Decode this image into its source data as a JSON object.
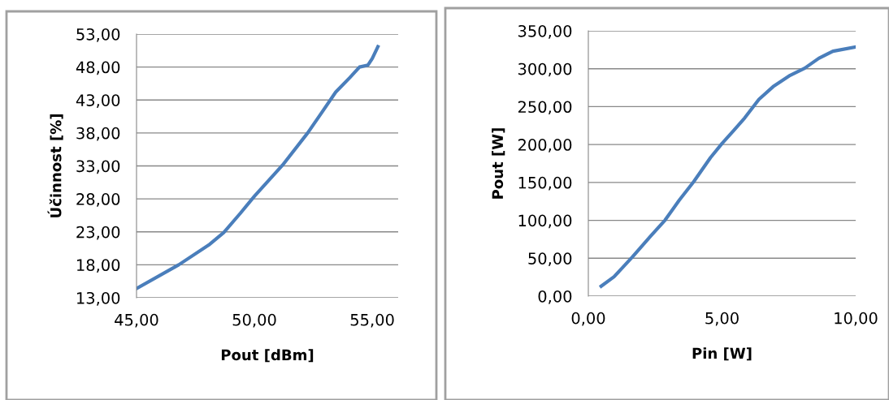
{
  "chart_data": [
    {
      "type": "line",
      "xlabel": "Pout [dBm]",
      "ylabel": "Účinnost [%]",
      "xlim": [
        45,
        56.1
      ],
      "ylim": [
        13,
        53
      ],
      "xticks": [
        {
          "value": 45,
          "label": "45,00"
        },
        {
          "value": 50,
          "label": "50,00"
        },
        {
          "value": 55,
          "label": "55,00"
        }
      ],
      "yticks": [
        {
          "value": 13,
          "label": "13,00"
        },
        {
          "value": 18,
          "label": "18,00"
        },
        {
          "value": 23,
          "label": "23,00"
        },
        {
          "value": 28,
          "label": "28,00"
        },
        {
          "value": 33,
          "label": "33,00"
        },
        {
          "value": 38,
          "label": "38,00"
        },
        {
          "value": 43,
          "label": "43,00"
        },
        {
          "value": 48,
          "label": "48,00"
        },
        {
          "value": 53,
          "label": "53,00"
        }
      ],
      "grid": "y",
      "marker": "none",
      "line_style": "solid",
      "series": [
        {
          "color": "#4a7ebb",
          "x": [
            45,
            46.79,
            48.1,
            48.7,
            49.4,
            50.0,
            51.19,
            52.26,
            52.86,
            53.45,
            54.05,
            54.46,
            54.82,
            55.0,
            55.24
          ],
          "values": [
            14.4,
            18.0,
            21.1,
            22.9,
            25.8,
            28.4,
            33.1,
            38.0,
            41.1,
            44.2,
            46.4,
            48.0,
            48.3,
            49.3,
            51.1
          ]
        }
      ]
    },
    {
      "type": "line",
      "xlabel": "Pin [W]",
      "ylabel": "Pout [W]",
      "xlim": [
        0,
        10
      ],
      "ylim": [
        0,
        350
      ],
      "xticks": [
        {
          "value": 0,
          "label": "0,00"
        },
        {
          "value": 5,
          "label": "5,00"
        },
        {
          "value": 10,
          "label": "10,00"
        }
      ],
      "yticks": [
        {
          "value": 0,
          "label": "0,00"
        },
        {
          "value": 50,
          "label": "50,00"
        },
        {
          "value": 100,
          "label": "100,00"
        },
        {
          "value": 150,
          "label": "150,00"
        },
        {
          "value": 200,
          "label": "200,00"
        },
        {
          "value": 250,
          "label": "250,00"
        },
        {
          "value": 300,
          "label": "300,00"
        },
        {
          "value": 350,
          "label": "350,00"
        }
      ],
      "grid": "y",
      "marker": "none",
      "line_style": "solid",
      "series": [
        {
          "color": "#4a7ebb",
          "x": [
            0.48,
            0.96,
            1.65,
            2.34,
            2.87,
            3.4,
            3.94,
            4.57,
            5.0,
            5.43,
            5.85,
            6.38,
            6.91,
            7.55,
            8.09,
            8.62,
            9.15,
            10.0
          ],
          "values": [
            13.1,
            25.5,
            51.7,
            79.7,
            100.3,
            126.5,
            150.9,
            182.7,
            201.4,
            218.3,
            235.1,
            259.5,
            276.3,
            291.3,
            300.6,
            313.7,
            323.1,
            328.7
          ]
        }
      ]
    }
  ]
}
